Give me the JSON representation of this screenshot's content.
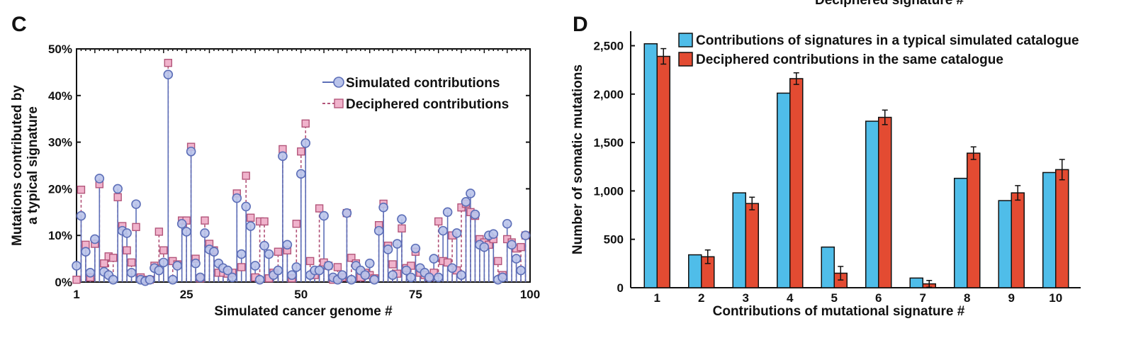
{
  "top_partial_text": "Deciphered signature #",
  "panels": {
    "c": {
      "letter": "C"
    },
    "d": {
      "letter": "D"
    }
  },
  "colors": {
    "simulated_fill": "#b9c3ea",
    "simulated_stroke": "#5d6fb8",
    "deciphered_fill": "#f0b3cc",
    "deciphered_stroke": "#b3557a",
    "bar_simulated": "#4fbde9",
    "bar_deciphered": "#e34b32"
  },
  "chart_data": [
    {
      "type": "scatter",
      "panel": "C",
      "title": "",
      "xlabel": "Simulated cancer genome #",
      "ylabel_lines": [
        "Mutations contributed by",
        "a typical signature"
      ],
      "xlim": [
        1,
        100
      ],
      "ylim": [
        0,
        50
      ],
      "x_ticks": [
        1,
        25,
        50,
        75,
        100
      ],
      "y_ticks": [
        "0%",
        "10%",
        "20%",
        "30%",
        "40%",
        "50%"
      ],
      "legend": [
        "Simulated contributions",
        "Deciphered contributions"
      ],
      "legend_position": "top-right",
      "series": [
        {
          "name": "Simulated contributions",
          "style": "solid stem, circle marker",
          "points": [
            [
              1,
              3.5
            ],
            [
              2,
              14.2
            ],
            [
              3,
              6.5
            ],
            [
              4,
              2
            ],
            [
              5,
              9.2
            ],
            [
              6,
              22.2
            ],
            [
              7,
              2.2
            ],
            [
              8,
              1.5
            ],
            [
              9,
              0.5
            ],
            [
              10,
              20
            ],
            [
              11,
              11
            ],
            [
              12,
              10.5
            ],
            [
              13,
              2
            ],
            [
              14,
              16.7
            ],
            [
              15,
              0.5
            ],
            [
              16,
              0.2
            ],
            [
              17,
              0.5
            ],
            [
              18,
              3
            ],
            [
              19,
              2.5
            ],
            [
              20,
              4.2
            ],
            [
              21,
              44.5
            ],
            [
              22,
              0.5
            ],
            [
              23,
              3.5
            ],
            [
              24,
              12.5
            ],
            [
              25,
              10.8
            ],
            [
              26,
              28
            ],
            [
              27,
              4
            ],
            [
              28,
              1
            ],
            [
              29,
              10.5
            ],
            [
              30,
              7
            ],
            [
              31,
              6.5
            ],
            [
              32,
              4
            ],
            [
              33,
              3
            ],
            [
              34,
              2.5
            ],
            [
              35,
              1
            ],
            [
              36,
              18
            ],
            [
              37,
              6
            ],
            [
              38,
              16.2
            ],
            [
              39,
              12
            ],
            [
              40,
              3.5
            ],
            [
              41,
              0.5
            ],
            [
              42,
              7.8
            ],
            [
              43,
              6
            ],
            [
              44,
              1.5
            ],
            [
              45,
              2.5
            ],
            [
              46,
              27
            ],
            [
              47,
              8
            ],
            [
              48,
              1.5
            ],
            [
              49,
              3.2
            ],
            [
              50,
              23.2
            ],
            [
              51,
              29.8
            ],
            [
              52,
              1.5
            ],
            [
              53,
              2.5
            ],
            [
              54,
              2.5
            ],
            [
              55,
              14.2
            ],
            [
              56,
              3.5
            ],
            [
              57,
              1
            ],
            [
              58,
              0.5
            ],
            [
              59,
              1.5
            ],
            [
              60,
              14.8
            ],
            [
              61,
              0.5
            ],
            [
              62,
              3.5
            ],
            [
              63,
              2.5
            ],
            [
              64,
              1.5
            ],
            [
              65,
              4
            ],
            [
              66,
              0.5
            ],
            [
              67,
              11
            ],
            [
              68,
              16
            ],
            [
              69,
              7
            ],
            [
              70,
              1.5
            ],
            [
              71,
              8.2
            ],
            [
              72,
              13.5
            ],
            [
              73,
              2.5
            ],
            [
              74,
              1
            ],
            [
              75,
              7.2
            ],
            [
              76,
              3
            ],
            [
              77,
              2
            ],
            [
              78,
              1
            ],
            [
              79,
              5
            ],
            [
              80,
              1
            ],
            [
              81,
              11
            ],
            [
              82,
              15
            ],
            [
              83,
              3
            ],
            [
              84,
              10.5
            ],
            [
              85,
              1.5
            ],
            [
              86,
              17.2
            ],
            [
              87,
              19
            ],
            [
              88,
              14.5
            ],
            [
              89,
              8
            ],
            [
              90,
              7.5
            ],
            [
              91,
              10
            ],
            [
              92,
              10.3
            ],
            [
              93,
              0.5
            ],
            [
              94,
              1
            ],
            [
              95,
              12.5
            ],
            [
              96,
              8
            ],
            [
              97,
              5
            ],
            [
              98,
              2.5
            ],
            [
              99,
              10
            ]
          ]
        },
        {
          "name": "Deciphered contributions",
          "style": "dashed stem, square marker",
          "points": [
            [
              1,
              0.5
            ],
            [
              2,
              19.8
            ],
            [
              3,
              8
            ],
            [
              4,
              1
            ],
            [
              5,
              8.2
            ],
            [
              6,
              21
            ],
            [
              7,
              4
            ],
            [
              8,
              5.5
            ],
            [
              9,
              5.2
            ],
            [
              10,
              18.2
            ],
            [
              11,
              12
            ],
            [
              12,
              6.8
            ],
            [
              13,
              4.2
            ],
            [
              14,
              11.8
            ],
            [
              15,
              1
            ],
            [
              16,
              0.5
            ],
            [
              17,
              0.5
            ],
            [
              18,
              3.5
            ],
            [
              19,
              10.8
            ],
            [
              20,
              6.8
            ],
            [
              21,
              47
            ],
            [
              22,
              4.5
            ],
            [
              23,
              3.8
            ],
            [
              24,
              13.2
            ],
            [
              25,
              13.2
            ],
            [
              26,
              29
            ],
            [
              27,
              5
            ],
            [
              28,
              0.8
            ],
            [
              29,
              13.2
            ],
            [
              30,
              8.2
            ],
            [
              31,
              6.8
            ],
            [
              32,
              2
            ],
            [
              33,
              2
            ],
            [
              34,
              1.8
            ],
            [
              35,
              2
            ],
            [
              36,
              19
            ],
            [
              37,
              3.2
            ],
            [
              38,
              22.8
            ],
            [
              39,
              13.8
            ],
            [
              40,
              1
            ],
            [
              41,
              13
            ],
            [
              42,
              13
            ],
            [
              43,
              0.8
            ],
            [
              44,
              2
            ],
            [
              45,
              6.5
            ],
            [
              46,
              28.5
            ],
            [
              47,
              6.8
            ],
            [
              48,
              0.8
            ],
            [
              49,
              12.5
            ],
            [
              50,
              28
            ],
            [
              51,
              34
            ],
            [
              52,
              4.5
            ],
            [
              53,
              1.5
            ],
            [
              54,
              15.8
            ],
            [
              55,
              4.2
            ],
            [
              56,
              3.5
            ],
            [
              57,
              0.5
            ],
            [
              58,
              3.2
            ],
            [
              59,
              1
            ],
            [
              60,
              14.8
            ],
            [
              61,
              5.2
            ],
            [
              62,
              4
            ],
            [
              63,
              1
            ],
            [
              64,
              2
            ],
            [
              65,
              1.5
            ],
            [
              66,
              0.8
            ],
            [
              67,
              12.2
            ],
            [
              68,
              16.8
            ],
            [
              69,
              7.8
            ],
            [
              70,
              3.8
            ],
            [
              71,
              1.8
            ],
            [
              72,
              11.5
            ],
            [
              73,
              3
            ],
            [
              74,
              3.5
            ],
            [
              75,
              6.5
            ],
            [
              76,
              2
            ],
            [
              77,
              1.5
            ],
            [
              78,
              1
            ],
            [
              79,
              2
            ],
            [
              80,
              13
            ],
            [
              81,
              4.5
            ],
            [
              82,
              4.2
            ],
            [
              83,
              10
            ],
            [
              84,
              2.5
            ],
            [
              85,
              16
            ],
            [
              86,
              16.8
            ],
            [
              87,
              15
            ],
            [
              88,
              14.2
            ],
            [
              89,
              9.2
            ],
            [
              90,
              8.5
            ],
            [
              91,
              8
            ],
            [
              92,
              9.2
            ],
            [
              93,
              4.5
            ],
            [
              94,
              1.5
            ],
            [
              95,
              9.2
            ],
            [
              96,
              8.5
            ],
            [
              97,
              7.2
            ],
            [
              98,
              7.5
            ],
            [
              99,
              10
            ]
          ]
        }
      ]
    },
    {
      "type": "bar",
      "panel": "D",
      "title": "",
      "xlabel": "Contributions of mutational signature #",
      "ylabel": "Number of somatic mutations",
      "categories": [
        "1",
        "2",
        "3",
        "4",
        "5",
        "6",
        "7",
        "8",
        "9",
        "10"
      ],
      "ylim": [
        0,
        2650
      ],
      "y_ticks": [
        "0",
        "500",
        "1,000",
        "1,500",
        "2,000",
        "2,500"
      ],
      "legend_position": "top-left",
      "series": [
        {
          "name": "Contributions of signatures in a typical simulated catalogue",
          "values": [
            2520,
            340,
            980,
            2010,
            420,
            1720,
            100,
            1130,
            900,
            1190
          ]
        },
        {
          "name": "Deciphered contributions in the same catalogue",
          "values": [
            2390,
            320,
            870,
            2160,
            150,
            1760,
            40,
            1390,
            980,
            1220
          ],
          "errors": [
            80,
            70,
            65,
            60,
            70,
            75,
            35,
            65,
            75,
            105
          ]
        }
      ]
    }
  ]
}
